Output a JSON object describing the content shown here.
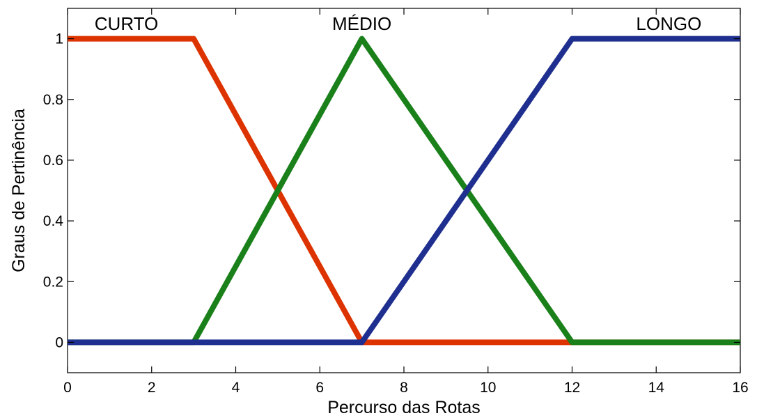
{
  "chart_data": {
    "type": "line",
    "title": "",
    "xlabel": "Percurso das Rotas",
    "ylabel": "Graus de Pertinência",
    "xlim": [
      0,
      16
    ],
    "ylim": [
      -0.1,
      1.1
    ],
    "xticks": [
      0,
      2,
      4,
      6,
      8,
      10,
      12,
      14,
      16
    ],
    "xtick_labels": [
      "0",
      "2",
      "4",
      "6",
      "8",
      "10",
      "12",
      "14",
      "16"
    ],
    "yticks": [
      0,
      0.2,
      0.4,
      0.6,
      0.8,
      1
    ],
    "ytick_labels": [
      "0",
      "0.2",
      "0.4",
      "0.6",
      "0.8",
      "1"
    ],
    "grid": false,
    "legend": "none",
    "series": [
      {
        "name": "CURTO",
        "color": "#dd3300",
        "x": [
          0,
          3,
          7,
          16
        ],
        "y": [
          1,
          1,
          0,
          0
        ],
        "label_at": [
          1.4,
          1.05
        ]
      },
      {
        "name": "MÉDIO",
        "color": "#1a801a",
        "x": [
          0,
          3,
          7,
          12,
          16
        ],
        "y": [
          0,
          0,
          1,
          0,
          0
        ],
        "label_at": [
          7,
          1.05
        ]
      },
      {
        "name": "LONGO",
        "color": "#1f2f8f",
        "x": [
          0,
          7,
          12,
          16
        ],
        "y": [
          0,
          0,
          1,
          1
        ],
        "label_at": [
          14.3,
          1.05
        ]
      }
    ]
  }
}
